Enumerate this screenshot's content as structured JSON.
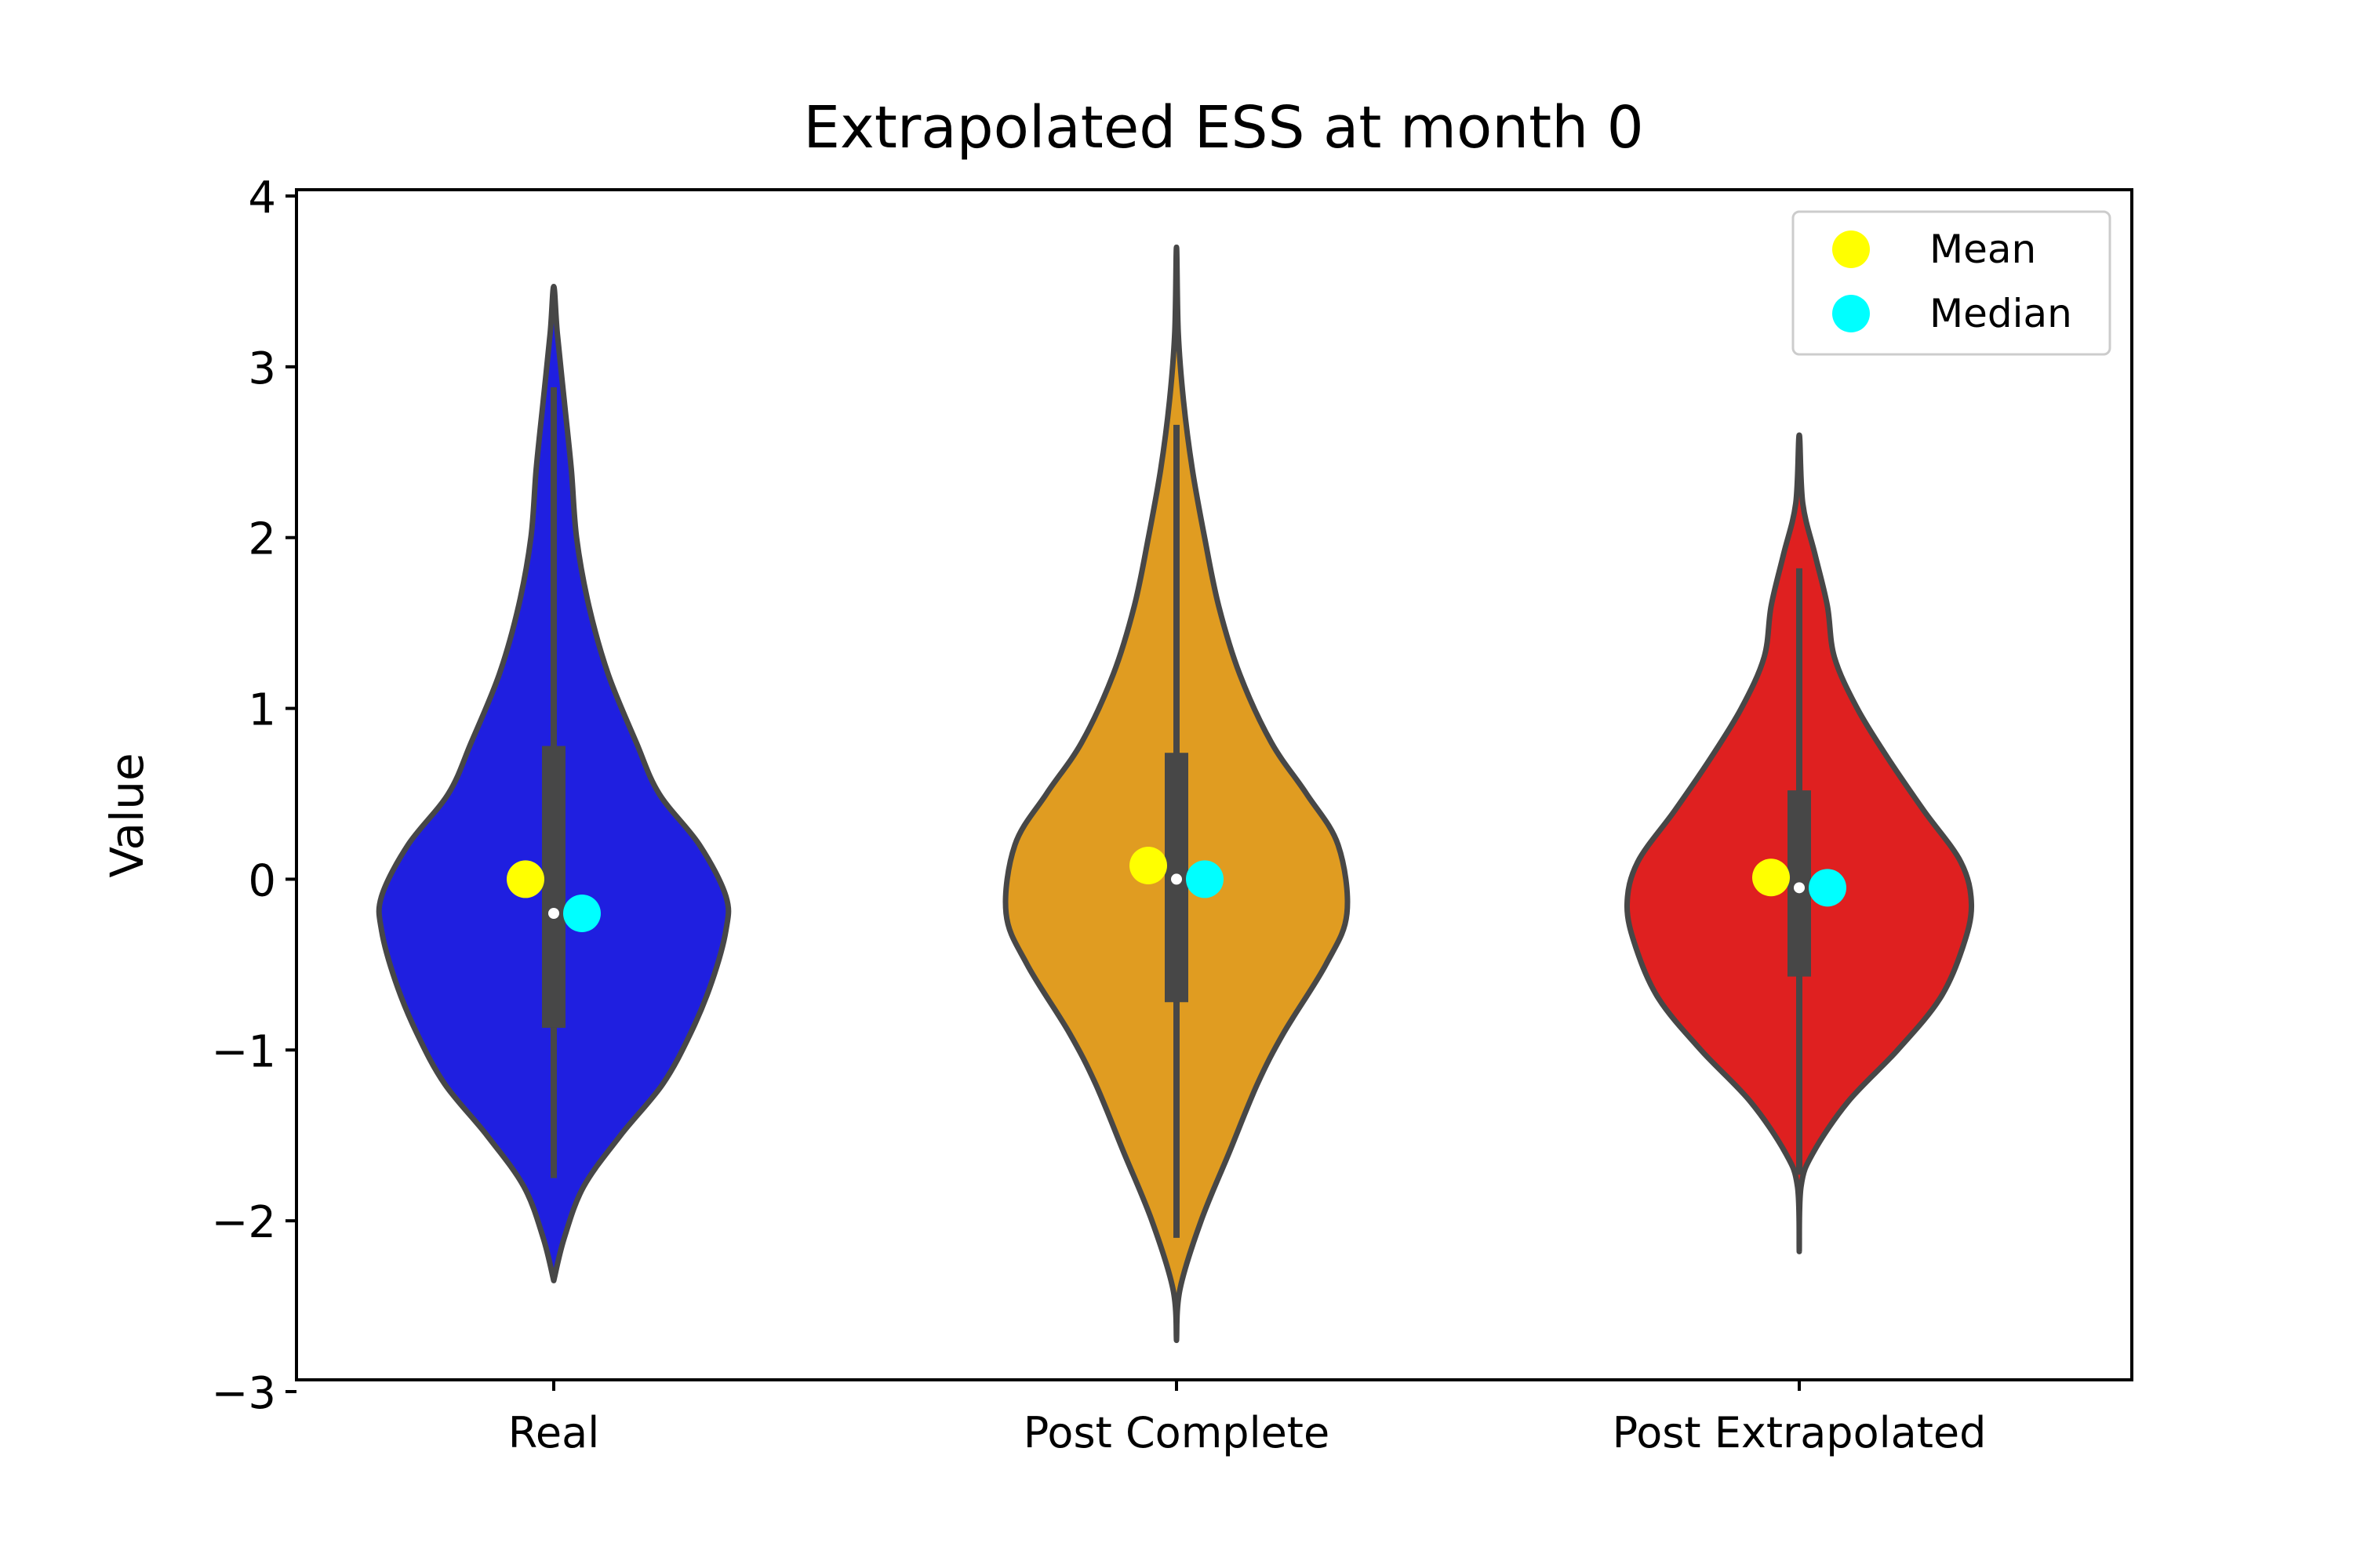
{
  "chart_data": {
    "type": "violin",
    "title": "Extrapolated ESS at month 0",
    "xlabel": "",
    "ylabel": "Value",
    "ylim": [
      -3,
      4
    ],
    "yticks": [
      -3,
      -2,
      -1,
      0,
      1,
      2,
      3,
      4
    ],
    "ytick_labels": [
      "−3",
      "−2",
      "−1",
      "0",
      "1",
      "2",
      "3",
      "4"
    ],
    "categories": [
      "Real",
      "Post Complete",
      "Post Extrapolated"
    ],
    "legend": {
      "position": "top-right",
      "entries": [
        {
          "label": "Mean",
          "color": "#ffff00"
        },
        {
          "label": "Median",
          "color": "#00ffff"
        }
      ]
    },
    "series": [
      {
        "category": "Real",
        "color": "#1f1fe0",
        "mean": 0.0,
        "median": -0.2,
        "q1": -0.87,
        "q3": 0.78,
        "whisker_low": -1.75,
        "whisker_high": 2.88,
        "density": [
          [
            -2.35,
            0.0
          ],
          [
            -2.1,
            0.06
          ],
          [
            -1.8,
            0.17
          ],
          [
            -1.5,
            0.38
          ],
          [
            -1.2,
            0.62
          ],
          [
            -0.9,
            0.78
          ],
          [
            -0.6,
            0.9
          ],
          [
            -0.3,
            0.98
          ],
          [
            -0.1,
            0.98
          ],
          [
            0.2,
            0.83
          ],
          [
            0.5,
            0.6
          ],
          [
            0.8,
            0.47
          ],
          [
            1.2,
            0.31
          ],
          [
            1.6,
            0.2
          ],
          [
            2.0,
            0.13
          ],
          [
            2.4,
            0.1
          ],
          [
            2.8,
            0.06
          ],
          [
            3.2,
            0.02
          ],
          [
            3.47,
            0.0
          ]
        ]
      },
      {
        "category": "Post Complete",
        "color": "#e09c21",
        "mean": 0.08,
        "median": 0.0,
        "q1": -0.72,
        "q3": 0.74,
        "whisker_low": -2.1,
        "whisker_high": 2.66,
        "density": [
          [
            -2.7,
            0.0
          ],
          [
            -2.4,
            0.02
          ],
          [
            -2.0,
            0.14
          ],
          [
            -1.6,
            0.3
          ],
          [
            -1.2,
            0.46
          ],
          [
            -0.9,
            0.61
          ],
          [
            -0.5,
            0.85
          ],
          [
            -0.2,
            0.97
          ],
          [
            0.2,
            0.92
          ],
          [
            0.5,
            0.74
          ],
          [
            0.8,
            0.54
          ],
          [
            1.2,
            0.36
          ],
          [
            1.6,
            0.24
          ],
          [
            2.0,
            0.16
          ],
          [
            2.4,
            0.09
          ],
          [
            2.8,
            0.04
          ],
          [
            3.2,
            0.01
          ],
          [
            3.7,
            0.0
          ]
        ]
      },
      {
        "category": "Post Extrapolated",
        "color": "#df2020",
        "mean": 0.01,
        "median": -0.05,
        "q1": -0.57,
        "q3": 0.52,
        "whisker_low": -1.73,
        "whisker_high": 1.82,
        "density": [
          [
            -2.18,
            0.0
          ],
          [
            -1.8,
            0.01
          ],
          [
            -1.6,
            0.08
          ],
          [
            -1.3,
            0.28
          ],
          [
            -1.0,
            0.56
          ],
          [
            -0.7,
            0.8
          ],
          [
            -0.4,
            0.93
          ],
          [
            -0.15,
            0.98
          ],
          [
            0.1,
            0.92
          ],
          [
            0.4,
            0.71
          ],
          [
            0.7,
            0.51
          ],
          [
            1.0,
            0.33
          ],
          [
            1.3,
            0.2
          ],
          [
            1.6,
            0.16
          ],
          [
            1.9,
            0.09
          ],
          [
            2.2,
            0.02
          ],
          [
            2.6,
            0.0
          ]
        ]
      }
    ]
  }
}
